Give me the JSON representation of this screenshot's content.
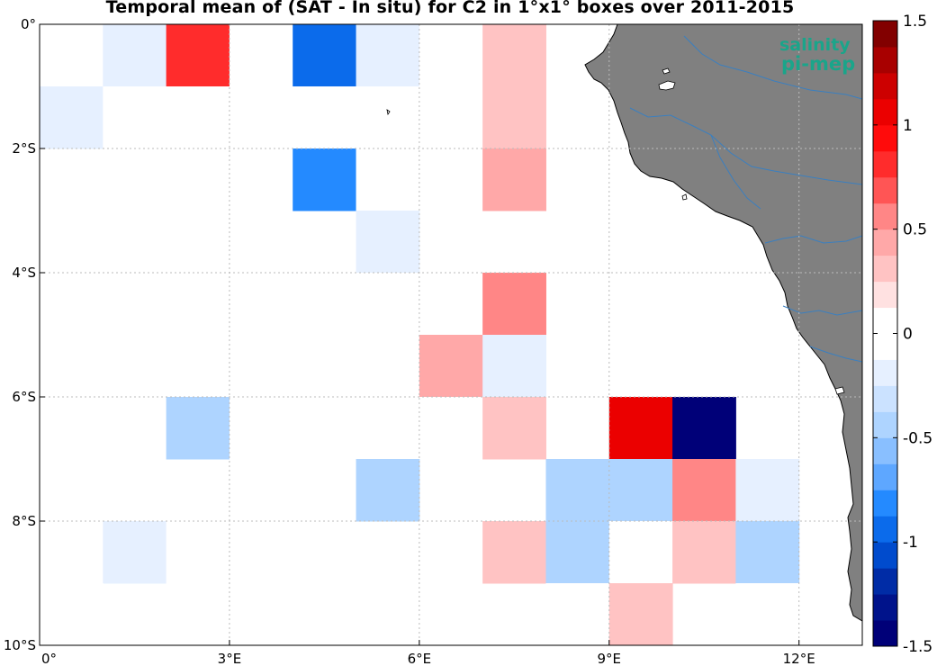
{
  "title": "Temporal mean of (SAT - In situ) for C2 in 1°x1° boxes over 2011-2015",
  "logo": {
    "line1": "salinity",
    "line2": "pi-mep"
  },
  "colors": {
    "land": "#808080",
    "coast": "#000000",
    "river": "#3a7fc0",
    "grid": "#bbbbbb",
    "logo": "#1aa58a"
  },
  "chart_data": {
    "type": "heatmap",
    "title": "Temporal mean of (SAT - In situ) for C2 in 1°x1° boxes over 2011-2015",
    "xlim": [
      0,
      13
    ],
    "ylim": [
      -10,
      0
    ],
    "x_ticks": [
      {
        "value": 0,
        "label": "0°"
      },
      {
        "value": 3,
        "label": "3°E"
      },
      {
        "value": 6,
        "label": "6°E"
      },
      {
        "value": 9,
        "label": "9°E"
      },
      {
        "value": 12,
        "label": "12°E"
      }
    ],
    "y_ticks": [
      {
        "value": 0,
        "label": "0°"
      },
      {
        "value": -2,
        "label": "2°S"
      },
      {
        "value": -4,
        "label": "4°S"
      },
      {
        "value": -6,
        "label": "6°S"
      },
      {
        "value": -8,
        "label": "8°S"
      },
      {
        "value": -10,
        "label": "10°S"
      }
    ],
    "grid": true,
    "colorbar": {
      "clim": [
        -1.5,
        1.5
      ],
      "levels": 24,
      "ticks": [
        {
          "value": 1.5,
          "label": "1.5"
        },
        {
          "value": 1,
          "label": "1"
        },
        {
          "value": 0.5,
          "label": "0.5"
        },
        {
          "value": 0,
          "label": "0"
        },
        {
          "value": -0.5,
          "label": "-0.5"
        },
        {
          "value": -1,
          "label": "-1"
        },
        {
          "value": -1.5,
          "label": "-1.5"
        }
      ]
    },
    "cells": [
      {
        "lon": 0,
        "lat": -1,
        "value": 0.0
      },
      {
        "lon": 1,
        "lat": -1,
        "value": -0.25
      },
      {
        "lon": 2,
        "lat": -1,
        "value": 0.82
      },
      {
        "lon": 3,
        "lat": -1,
        "value": 0.0
      },
      {
        "lon": 4,
        "lat": -1,
        "value": -1.0
      },
      {
        "lon": 5,
        "lat": -1,
        "value": -0.25
      },
      {
        "lon": 6,
        "lat": -1,
        "value": 0.12
      },
      {
        "lon": 7,
        "lat": -1,
        "value": 0.25
      },
      {
        "lon": 0,
        "lat": -2,
        "value": -0.25
      },
      {
        "lon": 1,
        "lat": -2,
        "value": -0.12
      },
      {
        "lon": 2,
        "lat": -2,
        "value": 0.0
      },
      {
        "lon": 3,
        "lat": -2,
        "value": -0.12
      },
      {
        "lon": 4,
        "lat": -2,
        "value": 0.0
      },
      {
        "lon": 5,
        "lat": -2,
        "value": -0.12
      },
      {
        "lon": 6,
        "lat": -2,
        "value": 0.0
      },
      {
        "lon": 7,
        "lat": -2,
        "value": 0.25
      },
      {
        "lon": 2,
        "lat": -3,
        "value": -0.12
      },
      {
        "lon": 4,
        "lat": -3,
        "value": -0.82
      },
      {
        "lon": 5,
        "lat": -3,
        "value": 0.0
      },
      {
        "lon": 7,
        "lat": -3,
        "value": 0.38
      },
      {
        "lon": 5,
        "lat": -4,
        "value": -0.25
      },
      {
        "lon": 4,
        "lat": -5,
        "value": 0.12
      },
      {
        "lon": 5,
        "lat": -5,
        "value": 0.12
      },
      {
        "lon": 7,
        "lat": -5,
        "value": 0.62
      },
      {
        "lon": 6,
        "lat": -6,
        "value": 0.38
      },
      {
        "lon": 7,
        "lat": -6,
        "value": -0.25
      },
      {
        "lon": 2,
        "lat": -7,
        "value": -0.38
      },
      {
        "lon": 3,
        "lat": -7,
        "value": -0.12
      },
      {
        "lon": 6,
        "lat": -7,
        "value": -0.12
      },
      {
        "lon": 7,
        "lat": -7,
        "value": 0.25
      },
      {
        "lon": 9,
        "lat": -7,
        "value": 1.05
      },
      {
        "lon": 10,
        "lat": -7,
        "value": -1.45
      },
      {
        "lon": 4,
        "lat": -8,
        "value": -0.12
      },
      {
        "lon": 5,
        "lat": -8,
        "value": -0.38
      },
      {
        "lon": 8,
        "lat": -8,
        "value": -0.38
      },
      {
        "lon": 9,
        "lat": -8,
        "value": -0.45
      },
      {
        "lon": 10,
        "lat": -8,
        "value": 0.5
      },
      {
        "lon": 11,
        "lat": -8,
        "value": -0.25
      },
      {
        "lon": 1,
        "lat": -9,
        "value": -0.25
      },
      {
        "lon": 2,
        "lat": -9,
        "value": -0.12
      },
      {
        "lon": 3,
        "lat": -9,
        "value": 0.12
      },
      {
        "lon": 4,
        "lat": -9,
        "value": 0.12
      },
      {
        "lon": 7,
        "lat": -9,
        "value": 0.25
      },
      {
        "lon": 8,
        "lat": -9,
        "value": -0.38
      },
      {
        "lon": 9,
        "lat": -9,
        "value": 0.0
      },
      {
        "lon": 10,
        "lat": -9,
        "value": 0.25
      },
      {
        "lon": 11,
        "lat": -9,
        "value": -0.38
      },
      {
        "lon": 0,
        "lat": -10,
        "value": -0.12
      },
      {
        "lon": 8,
        "lat": -10,
        "value": 0.12
      },
      {
        "lon": 9,
        "lat": -10,
        "value": 0.25
      },
      {
        "lon": 11,
        "lat": -10,
        "value": -0.12
      },
      {
        "lon": 12,
        "lat": -10,
        "value": 0.12
      }
    ]
  }
}
